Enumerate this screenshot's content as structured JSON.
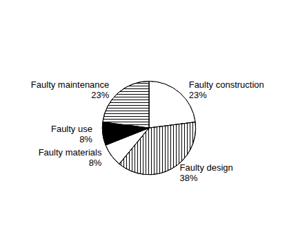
{
  "chart_data": {
    "type": "pie",
    "categories": [
      "Faulty construction",
      "Faulty design",
      "Faulty materials",
      "Faulty use",
      "Faulty maintenance"
    ],
    "values": [
      23,
      38,
      8,
      8,
      23
    ],
    "value_labels": [
      "23%",
      "38%",
      "8%",
      "8%",
      "23%"
    ],
    "colors": [
      "#ffffff",
      "#ffffff",
      "#ffffff",
      "#000000",
      "#ffffff"
    ],
    "data_labels": true
  }
}
